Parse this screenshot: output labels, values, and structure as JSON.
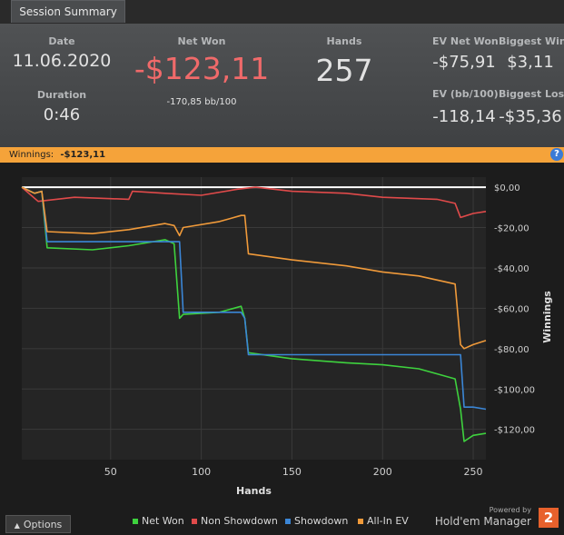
{
  "tab": {
    "label": "Session Summary"
  },
  "summary": {
    "date_label": "Date",
    "date_value": "11.06.2020",
    "duration_label": "Duration",
    "duration_value": "0:46",
    "net_won_label": "Net Won",
    "net_won_value": "-$123,11",
    "net_won_bb": "-170,85 bb/100",
    "hands_label": "Hands",
    "hands_value": "257",
    "ev_net_won_label": "EV Net Won",
    "ev_net_won_value": "-$75,91",
    "biggest_win_label": "Biggest Win",
    "biggest_win_value": "$3,11",
    "ev_bb_label": "EV (bb/100)",
    "ev_bb_value": "-118,14",
    "biggest_loss_label": "Biggest Loss",
    "biggest_loss_value": "-$35,36"
  },
  "winnings_bar": {
    "label": "Winnings:",
    "value": "-$123,11",
    "help_label": "?"
  },
  "colors": {
    "net_won": "#3ed23e",
    "non_showdown": "#e04a4a",
    "showdown": "#3b86d6",
    "all_in_ev": "#f09a3a",
    "accent_orange": "#f5a33a",
    "negative": "#f06a6a"
  },
  "chart_data": {
    "type": "line",
    "xlabel": "Hands",
    "ylabel": "Winnings",
    "xlim": [
      1,
      257
    ],
    "ylim": [
      -135,
      5
    ],
    "x_ticks": [
      "50",
      "100",
      "150",
      "200",
      "250"
    ],
    "y_ticks": [
      "$0,00",
      "-$20,00",
      "-$40,00",
      "-$60,00",
      "-$80,00",
      "-$100,00",
      "-$120,00"
    ],
    "grid": true,
    "series": [
      {
        "name": "Net Won",
        "color": "#3ed23e",
        "x": [
          1,
          8,
          12,
          15,
          40,
          60,
          80,
          85,
          88,
          90,
          110,
          122,
          124,
          126,
          150,
          180,
          200,
          220,
          240,
          243,
          245,
          250,
          257
        ],
        "y": [
          0,
          -3,
          -2,
          -30,
          -31,
          -29,
          -26,
          -28,
          -65,
          -63,
          -62,
          -59,
          -65,
          -82,
          -85,
          -87,
          -88,
          -90,
          -95,
          -110,
          -126,
          -123,
          -122
        ]
      },
      {
        "name": "Non Showdown",
        "color": "#e04a4a",
        "x": [
          1,
          10,
          30,
          60,
          62,
          80,
          100,
          120,
          130,
          150,
          180,
          200,
          230,
          240,
          243,
          250,
          257
        ],
        "y": [
          0,
          -7,
          -5,
          -6,
          -2,
          -3,
          -4,
          -1,
          0,
          -2,
          -3,
          -5,
          -6,
          -8,
          -15,
          -13,
          -12
        ]
      },
      {
        "name": "Showdown",
        "color": "#3b86d6",
        "x": [
          1,
          8,
          12,
          15,
          40,
          88,
          90,
          122,
          124,
          126,
          170,
          243,
          245,
          250,
          257
        ],
        "y": [
          0,
          -3,
          -2,
          -27,
          -27,
          -27,
          -62,
          -62,
          -65,
          -83,
          -83,
          -83,
          -109,
          -109,
          -110
        ]
      },
      {
        "name": "All-In EV",
        "color": "#f09a3a",
        "x": [
          1,
          8,
          12,
          15,
          40,
          60,
          80,
          85,
          88,
          90,
          110,
          122,
          124,
          126,
          150,
          180,
          200,
          220,
          240,
          243,
          245,
          250,
          257
        ],
        "y": [
          0,
          -3,
          -2,
          -22,
          -23,
          -21,
          -18,
          -19,
          -24,
          -20,
          -17,
          -14,
          -14,
          -33,
          -36,
          -39,
          -42,
          -44,
          -48,
          -78,
          -80,
          -78,
          -76
        ]
      }
    ]
  },
  "footer": {
    "options_label": "Options",
    "options_icon": "caret-up-icon",
    "powered_by": "Powered by",
    "brand": "Hold'em Manager",
    "badge": "2"
  }
}
